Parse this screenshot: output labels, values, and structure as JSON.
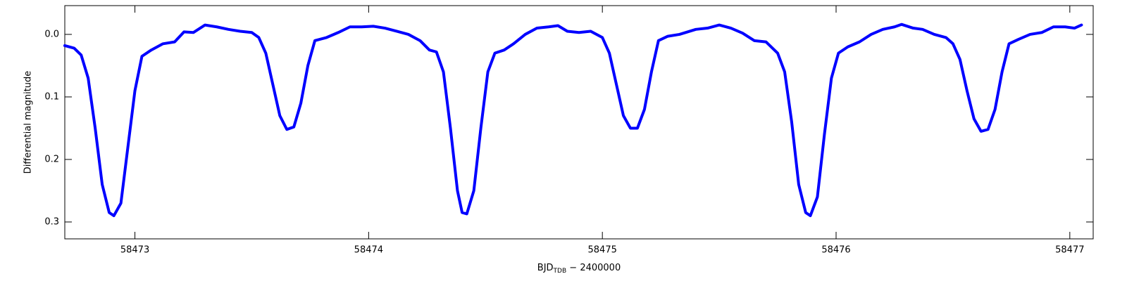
{
  "chart_data": {
    "type": "line",
    "ylabel": "Differential magnitude",
    "xlabel": {
      "main": "BJD",
      "sub": "TDB",
      "rest": " − 2400000"
    },
    "xlim": [
      58472.7,
      58477.1
    ],
    "xticks": [
      58473,
      58474,
      58475,
      58476,
      58477
    ],
    "ylim": [
      0.327,
      -0.046
    ],
    "yticks": [
      {
        "value": 0,
        "label": "0.0"
      },
      0.1,
      0.2,
      0.3
    ],
    "color": "#0000ff",
    "x": [
      58472.7,
      58472.74,
      58472.77,
      58472.8,
      58472.83,
      58472.86,
      58472.89,
      58472.91,
      58472.94,
      58472.97,
      58473.0,
      58473.03,
      58473.07,
      58473.12,
      58473.17,
      58473.21,
      58473.25,
      58473.3,
      58473.35,
      58473.4,
      58473.45,
      58473.5,
      58473.53,
      58473.56,
      58473.59,
      58473.62,
      58473.65,
      58473.68,
      58473.71,
      58473.74,
      58473.77,
      58473.82,
      58473.87,
      58473.92,
      58473.97,
      58474.02,
      58474.07,
      58474.12,
      58474.17,
      58474.22,
      58474.26,
      58474.29,
      58474.32,
      58474.35,
      58474.38,
      58474.4,
      58474.42,
      58474.45,
      58474.48,
      58474.51,
      58474.54,
      58474.58,
      58474.62,
      58474.67,
      58474.72,
      58474.77,
      58474.81,
      58474.85,
      58474.9,
      58474.95,
      58475.0,
      58475.03,
      58475.06,
      58475.09,
      58475.12,
      58475.15,
      58475.18,
      58475.21,
      58475.24,
      58475.28,
      58475.33,
      58475.4,
      58475.45,
      58475.5,
      58475.55,
      58475.6,
      58475.65,
      58475.7,
      58475.75,
      58475.78,
      58475.81,
      58475.84,
      58475.87,
      58475.89,
      58475.92,
      58475.95,
      58475.98,
      58476.01,
      58476.05,
      58476.1,
      58476.15,
      58476.2,
      58476.25,
      58476.28,
      58476.33,
      58476.37,
      58476.42,
      58476.47,
      58476.5,
      58476.53,
      58476.56,
      58476.59,
      58476.62,
      58476.65,
      58476.68,
      58476.71,
      58476.74,
      58476.78,
      58476.83,
      58476.88,
      58476.93,
      58476.98,
      58477.02,
      58477.05
    ],
    "values": [
      0.018,
      0.022,
      0.033,
      0.07,
      0.15,
      0.24,
      0.285,
      0.29,
      0.27,
      0.18,
      0.09,
      0.035,
      0.025,
      0.015,
      0.012,
      -0.004,
      -0.003,
      -0.015,
      -0.012,
      -0.008,
      -0.005,
      -0.003,
      0.005,
      0.03,
      0.08,
      0.13,
      0.152,
      0.148,
      0.11,
      0.05,
      0.01,
      0.005,
      -0.003,
      -0.012,
      -0.012,
      -0.013,
      -0.01,
      -0.005,
      0.0,
      0.01,
      0.025,
      0.028,
      0.06,
      0.15,
      0.25,
      0.285,
      0.287,
      0.25,
      0.15,
      0.06,
      0.03,
      0.025,
      0.015,
      0.0,
      -0.01,
      -0.012,
      -0.014,
      -0.005,
      -0.003,
      -0.005,
      0.005,
      0.03,
      0.08,
      0.13,
      0.15,
      0.15,
      0.12,
      0.06,
      0.01,
      0.003,
      0.0,
      -0.008,
      -0.01,
      -0.015,
      -0.01,
      -0.002,
      0.01,
      0.012,
      0.03,
      0.06,
      0.14,
      0.24,
      0.285,
      0.29,
      0.26,
      0.16,
      0.07,
      0.03,
      0.02,
      0.012,
      0.0,
      -0.008,
      -0.012,
      -0.016,
      -0.01,
      -0.008,
      0.0,
      0.005,
      0.015,
      0.04,
      0.09,
      0.135,
      0.155,
      0.152,
      0.12,
      0.06,
      0.015,
      0.008,
      0.0,
      -0.003,
      -0.012,
      -0.012,
      -0.01,
      -0.015
    ]
  }
}
